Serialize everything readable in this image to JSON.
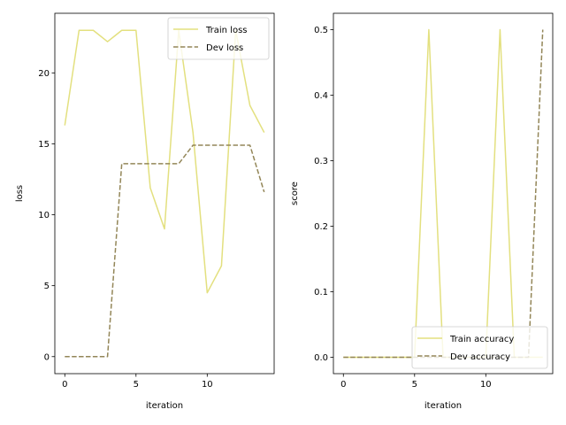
{
  "chart_data": [
    {
      "type": "line",
      "title": "",
      "xlabel": "iteration",
      "ylabel": "loss",
      "xlim": [
        -0.7,
        14.7
      ],
      "ylim": [
        -1.2,
        24.2
      ],
      "xticks": [
        0,
        5,
        10
      ],
      "yticks": [
        0,
        5,
        10,
        15,
        20
      ],
      "grid": false,
      "legend_position": "top-right",
      "series": [
        {
          "name": "Train loss",
          "color": "#e3e07f",
          "style": "solid",
          "x": [
            0,
            1,
            2,
            3,
            4,
            5,
            6,
            7,
            8,
            9,
            10,
            11,
            12,
            13,
            14
          ],
          "values": [
            16.3,
            23.0,
            23.0,
            22.2,
            23.0,
            23.0,
            11.9,
            9.0,
            23.0,
            15.8,
            4.5,
            6.4,
            23.0,
            17.7,
            15.8
          ]
        },
        {
          "name": "Dev loss",
          "color": "#938658",
          "style": "dashed",
          "x": [
            0,
            1,
            2,
            3,
            4,
            5,
            6,
            7,
            8,
            9,
            10,
            11,
            12,
            13,
            14
          ],
          "values": [
            0,
            0,
            0,
            0,
            13.6,
            13.6,
            13.6,
            13.6,
            13.6,
            14.9,
            14.9,
            14.9,
            14.9,
            14.9,
            11.6
          ]
        }
      ]
    },
    {
      "type": "line",
      "title": "",
      "xlabel": "iteration",
      "ylabel": "score",
      "xlim": [
        -0.7,
        14.7
      ],
      "ylim": [
        -0.025,
        0.525
      ],
      "xticks": [
        0,
        5,
        10
      ],
      "yticks": [
        0.0,
        0.1,
        0.2,
        0.3,
        0.4,
        0.5
      ],
      "grid": false,
      "legend_position": "bottom-right",
      "series": [
        {
          "name": "Train accuracy",
          "color": "#e3e07f",
          "style": "solid",
          "x": [
            0,
            1,
            2,
            3,
            4,
            5,
            6,
            7,
            8,
            9,
            10,
            11,
            12,
            13,
            14
          ],
          "values": [
            0,
            0,
            0,
            0,
            0,
            0,
            0.5,
            0,
            0,
            0,
            0,
            0.5,
            0,
            0,
            0
          ]
        },
        {
          "name": "Dev accuracy",
          "color": "#938658",
          "style": "dashed",
          "x": [
            0,
            1,
            2,
            3,
            4,
            5,
            6,
            7,
            8,
            9,
            10,
            11,
            12,
            13,
            14
          ],
          "values": [
            0,
            0,
            0,
            0,
            0,
            0,
            0,
            0,
            0,
            0,
            0,
            0,
            0,
            0,
            0.5
          ]
        }
      ]
    }
  ]
}
